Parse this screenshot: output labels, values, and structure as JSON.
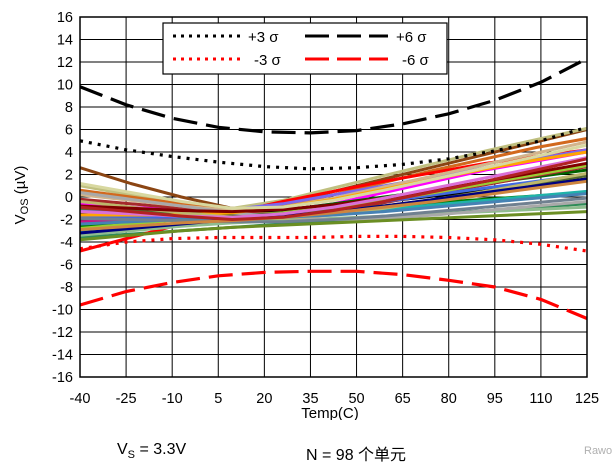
{
  "chart_data": {
    "type": "line",
    "xlabel": "Temp(C)",
    "ylabel": "VOS (µV)",
    "ylabel_main": "V",
    "ylabel_sub": "OS",
    "ylabel_unit": " (µV)",
    "xlim": [
      -40,
      125
    ],
    "ylim": [
      -16,
      16
    ],
    "x_ticks": [
      -40,
      -25,
      -10,
      5,
      20,
      35,
      50,
      65,
      80,
      95,
      110,
      125
    ],
    "y_ticks": [
      16,
      14,
      12,
      10,
      8,
      6,
      4,
      2,
      0,
      -2,
      -4,
      -6,
      -8,
      -10,
      -12,
      -14,
      -16
    ],
    "grid": true,
    "legend_position": "top-center",
    "sigma_series": [
      {
        "name": "+3 σ",
        "color": "#000000",
        "style": "dotted",
        "x": [
          -40,
          -25,
          -10,
          5,
          20,
          35,
          50,
          65,
          80,
          95,
          110,
          125
        ],
        "y": [
          5.0,
          4.2,
          3.6,
          3.1,
          2.7,
          2.5,
          2.6,
          2.9,
          3.4,
          4.1,
          5.0,
          6.2
        ]
      },
      {
        "name": "+6 σ",
        "color": "#000000",
        "style": "long-dash",
        "x": [
          -40,
          -25,
          -10,
          5,
          20,
          35,
          50,
          65,
          80,
          95,
          110,
          125
        ],
        "y": [
          9.8,
          8.2,
          7.0,
          6.2,
          5.8,
          5.7,
          5.9,
          6.5,
          7.4,
          8.6,
          10.2,
          12.3
        ]
      },
      {
        "name": "-3 σ",
        "color": "#ff0000",
        "style": "dotted",
        "x": [
          -40,
          -25,
          -10,
          5,
          20,
          35,
          50,
          65,
          80,
          95,
          110,
          125
        ],
        "y": [
          -4.6,
          -4.0,
          -3.7,
          -3.6,
          -3.6,
          -3.6,
          -3.5,
          -3.5,
          -3.6,
          -3.8,
          -4.2,
          -4.8
        ]
      },
      {
        "name": "-6 σ",
        "color": "#ff0000",
        "style": "long-dash",
        "x": [
          -40,
          -25,
          -10,
          5,
          20,
          35,
          50,
          65,
          80,
          95,
          110,
          125
        ],
        "y": [
          -9.6,
          -8.4,
          -7.6,
          -7.0,
          -6.7,
          -6.6,
          -6.6,
          -6.9,
          -7.4,
          -8.0,
          -9.1,
          -10.8
        ]
      }
    ],
    "unit_curves": [
      {
        "color": "#8b4513",
        "y": [
          2.6,
          1.2,
          0.0,
          -1.0,
          -0.7,
          0.5,
          1.6,
          2.7,
          3.8,
          4.9,
          6.0
        ]
      },
      {
        "color": "#c0c080",
        "y": [
          1.0,
          0.2,
          -0.5,
          -1.0,
          -0.3,
          0.8,
          1.9,
          3.0,
          4.1,
          5.1,
          6.1
        ]
      },
      {
        "color": "#d2691e",
        "y": [
          0.6,
          0.0,
          -0.6,
          -1.2,
          -0.8,
          0.2,
          1.3,
          2.4,
          3.4,
          4.4,
          5.2
        ]
      },
      {
        "color": "#2e8b57",
        "y": [
          -3.6,
          -3.3,
          -3.0,
          -2.7,
          -2.4,
          -2.1,
          -1.8,
          -1.5,
          -1.2,
          -0.9,
          -0.6
        ]
      },
      {
        "color": "#ff0000",
        "y": [
          -4.8,
          -3.6,
          -2.4,
          -1.4,
          -0.4,
          0.5,
          1.4,
          2.2,
          3.0,
          3.6,
          4.2
        ]
      },
      {
        "color": "#7b68ee",
        "y": [
          -1.2,
          -1.2,
          -1.2,
          -1.1,
          -0.6,
          0.2,
          1.0,
          1.8,
          2.6,
          3.4,
          4.2
        ]
      },
      {
        "color": "#ff00ff",
        "y": [
          -0.6,
          -0.9,
          -1.2,
          -1.4,
          -1.2,
          -0.6,
          0.4,
          1.4,
          2.4,
          3.2,
          4.0
        ]
      },
      {
        "color": "#008000",
        "y": [
          -2.6,
          -2.3,
          -2.0,
          -1.7,
          -1.4,
          -1.1,
          -0.8,
          -0.5,
          -0.2,
          0.1,
          0.4
        ]
      },
      {
        "color": "#006400",
        "y": [
          -2.0,
          -1.9,
          -1.8,
          -1.6,
          -1.2,
          -0.6,
          0.0,
          0.6,
          1.2,
          1.8,
          2.4
        ]
      },
      {
        "color": "#000000",
        "y": [
          -1.4,
          -1.5,
          -1.6,
          -1.6,
          -1.3,
          -0.9,
          -0.4,
          0.1,
          0.6,
          1.1,
          1.6
        ]
      },
      {
        "color": "#a52a2a",
        "y": [
          -0.2,
          -0.6,
          -1.0,
          -1.4,
          -1.5,
          -1.2,
          -0.5,
          0.3,
          1.1,
          1.9,
          2.7
        ]
      },
      {
        "color": "#4169e1",
        "y": [
          -1.8,
          -1.8,
          -1.8,
          -1.8,
          -1.5,
          -1.0,
          -0.4,
          0.2,
          0.8,
          1.4,
          2.0
        ]
      },
      {
        "color": "#d2b48c",
        "y": [
          0.2,
          -0.3,
          -0.8,
          -1.2,
          -0.9,
          -0.1,
          0.9,
          1.9,
          2.9,
          3.9,
          4.9
        ]
      },
      {
        "color": "#c71585",
        "y": [
          -2.2,
          -2.1,
          -2.0,
          -1.8,
          -1.5,
          -1.0,
          -0.3,
          0.4,
          1.2,
          2.0,
          2.8
        ]
      },
      {
        "color": "#20b2aa",
        "y": [
          -3.0,
          -2.7,
          -2.4,
          -2.2,
          -1.9,
          -1.5,
          -1.1,
          -0.7,
          -0.3,
          0.1,
          0.5
        ]
      },
      {
        "color": "#8fbc8f",
        "y": [
          -3.4,
          -3.0,
          -2.6,
          -2.3,
          -2.1,
          -1.9,
          -1.7,
          -1.5,
          -1.3,
          -1.1,
          -0.9
        ]
      },
      {
        "color": "#9acd32",
        "y": [
          -2.8,
          -2.4,
          -2.0,
          -1.7,
          -1.4,
          -0.9,
          -0.3,
          0.4,
          1.2,
          2.0,
          2.8
        ]
      },
      {
        "color": "#556b2f",
        "y": [
          -1.0,
          -1.2,
          -1.4,
          -1.6,
          -1.5,
          -1.2,
          -0.8,
          -0.2,
          0.5,
          1.2,
          1.9
        ]
      },
      {
        "color": "#a9a9a9",
        "y": [
          0.4,
          -0.2,
          -0.8,
          -1.4,
          -1.8,
          -2.0,
          -1.9,
          -1.6,
          -1.2,
          -0.8,
          -0.4
        ]
      },
      {
        "color": "#ffa500",
        "y": [
          -1.6,
          -1.6,
          -1.6,
          -1.4,
          -0.9,
          -0.2,
          0.7,
          1.6,
          2.5,
          3.3,
          4.0
        ]
      },
      {
        "color": "#bdb76b",
        "y": [
          -0.4,
          -0.9,
          -1.4,
          -1.8,
          -1.9,
          -1.6,
          -1.0,
          -0.3,
          0.5,
          1.3,
          2.1
        ]
      },
      {
        "color": "#4682b4",
        "y": [
          -2.4,
          -2.2,
          -2.0,
          -1.9,
          -1.8,
          -1.6,
          -1.3,
          -0.9,
          -0.5,
          -0.1,
          0.3
        ]
      },
      {
        "color": "#000080",
        "y": [
          -3.2,
          -2.8,
          -2.4,
          -2.0,
          -1.7,
          -1.3,
          -0.8,
          -0.2,
          0.4,
          1.0,
          1.6
        ]
      },
      {
        "color": "#800000",
        "y": [
          -0.8,
          -1.0,
          -1.2,
          -1.3,
          -1.1,
          -0.7,
          -0.1,
          0.6,
          1.4,
          2.2,
          3.0
        ]
      },
      {
        "color": "#708090",
        "y": [
          -1.9,
          -2.0,
          -2.1,
          -2.2,
          -2.2,
          -2.0,
          -1.7,
          -1.3,
          -0.9,
          -0.5,
          -0.1
        ]
      },
      {
        "color": "#cd853f",
        "y": [
          -2.9,
          -2.6,
          -2.3,
          -2.1,
          -1.8,
          -1.4,
          -0.9,
          -0.4,
          0.2,
          0.8,
          1.4
        ]
      },
      {
        "color": "#6b8e23",
        "y": [
          -3.8,
          -3.4,
          -3.0,
          -2.7,
          -2.5,
          -2.3,
          -2.1,
          -1.9,
          -1.7,
          -1.5,
          -1.3
        ]
      },
      {
        "color": "#da70d6",
        "y": [
          -1.3,
          -1.5,
          -1.7,
          -1.8,
          -1.5,
          -0.9,
          -0.1,
          0.8,
          1.7,
          2.6,
          3.5
        ]
      },
      {
        "color": "#b22222",
        "y": [
          -0.9,
          -1.3,
          -1.7,
          -2.0,
          -1.8,
          -1.2,
          -0.4,
          0.5,
          1.4,
          2.4,
          3.4
        ]
      },
      {
        "color": "#d8d8a0",
        "y": [
          1.2,
          0.4,
          -0.4,
          -1.0,
          -0.9,
          -0.3,
          0.6,
          1.6,
          2.6,
          3.6,
          4.6
        ]
      }
    ],
    "unit_x": [
      -40,
      -23.5,
      -7,
      9.5,
      26,
      42.5,
      59,
      75.5,
      92,
      108.5,
      125
    ]
  },
  "legend": {
    "labels": [
      "+3 σ",
      "+6 σ",
      "-3 σ",
      "-6 σ"
    ]
  },
  "caption": {
    "vs_main": "V",
    "vs_sub": "S",
    "vs_value": " = 3.3V",
    "count": "N = 98 个单元"
  },
  "watermark": "Rawo"
}
